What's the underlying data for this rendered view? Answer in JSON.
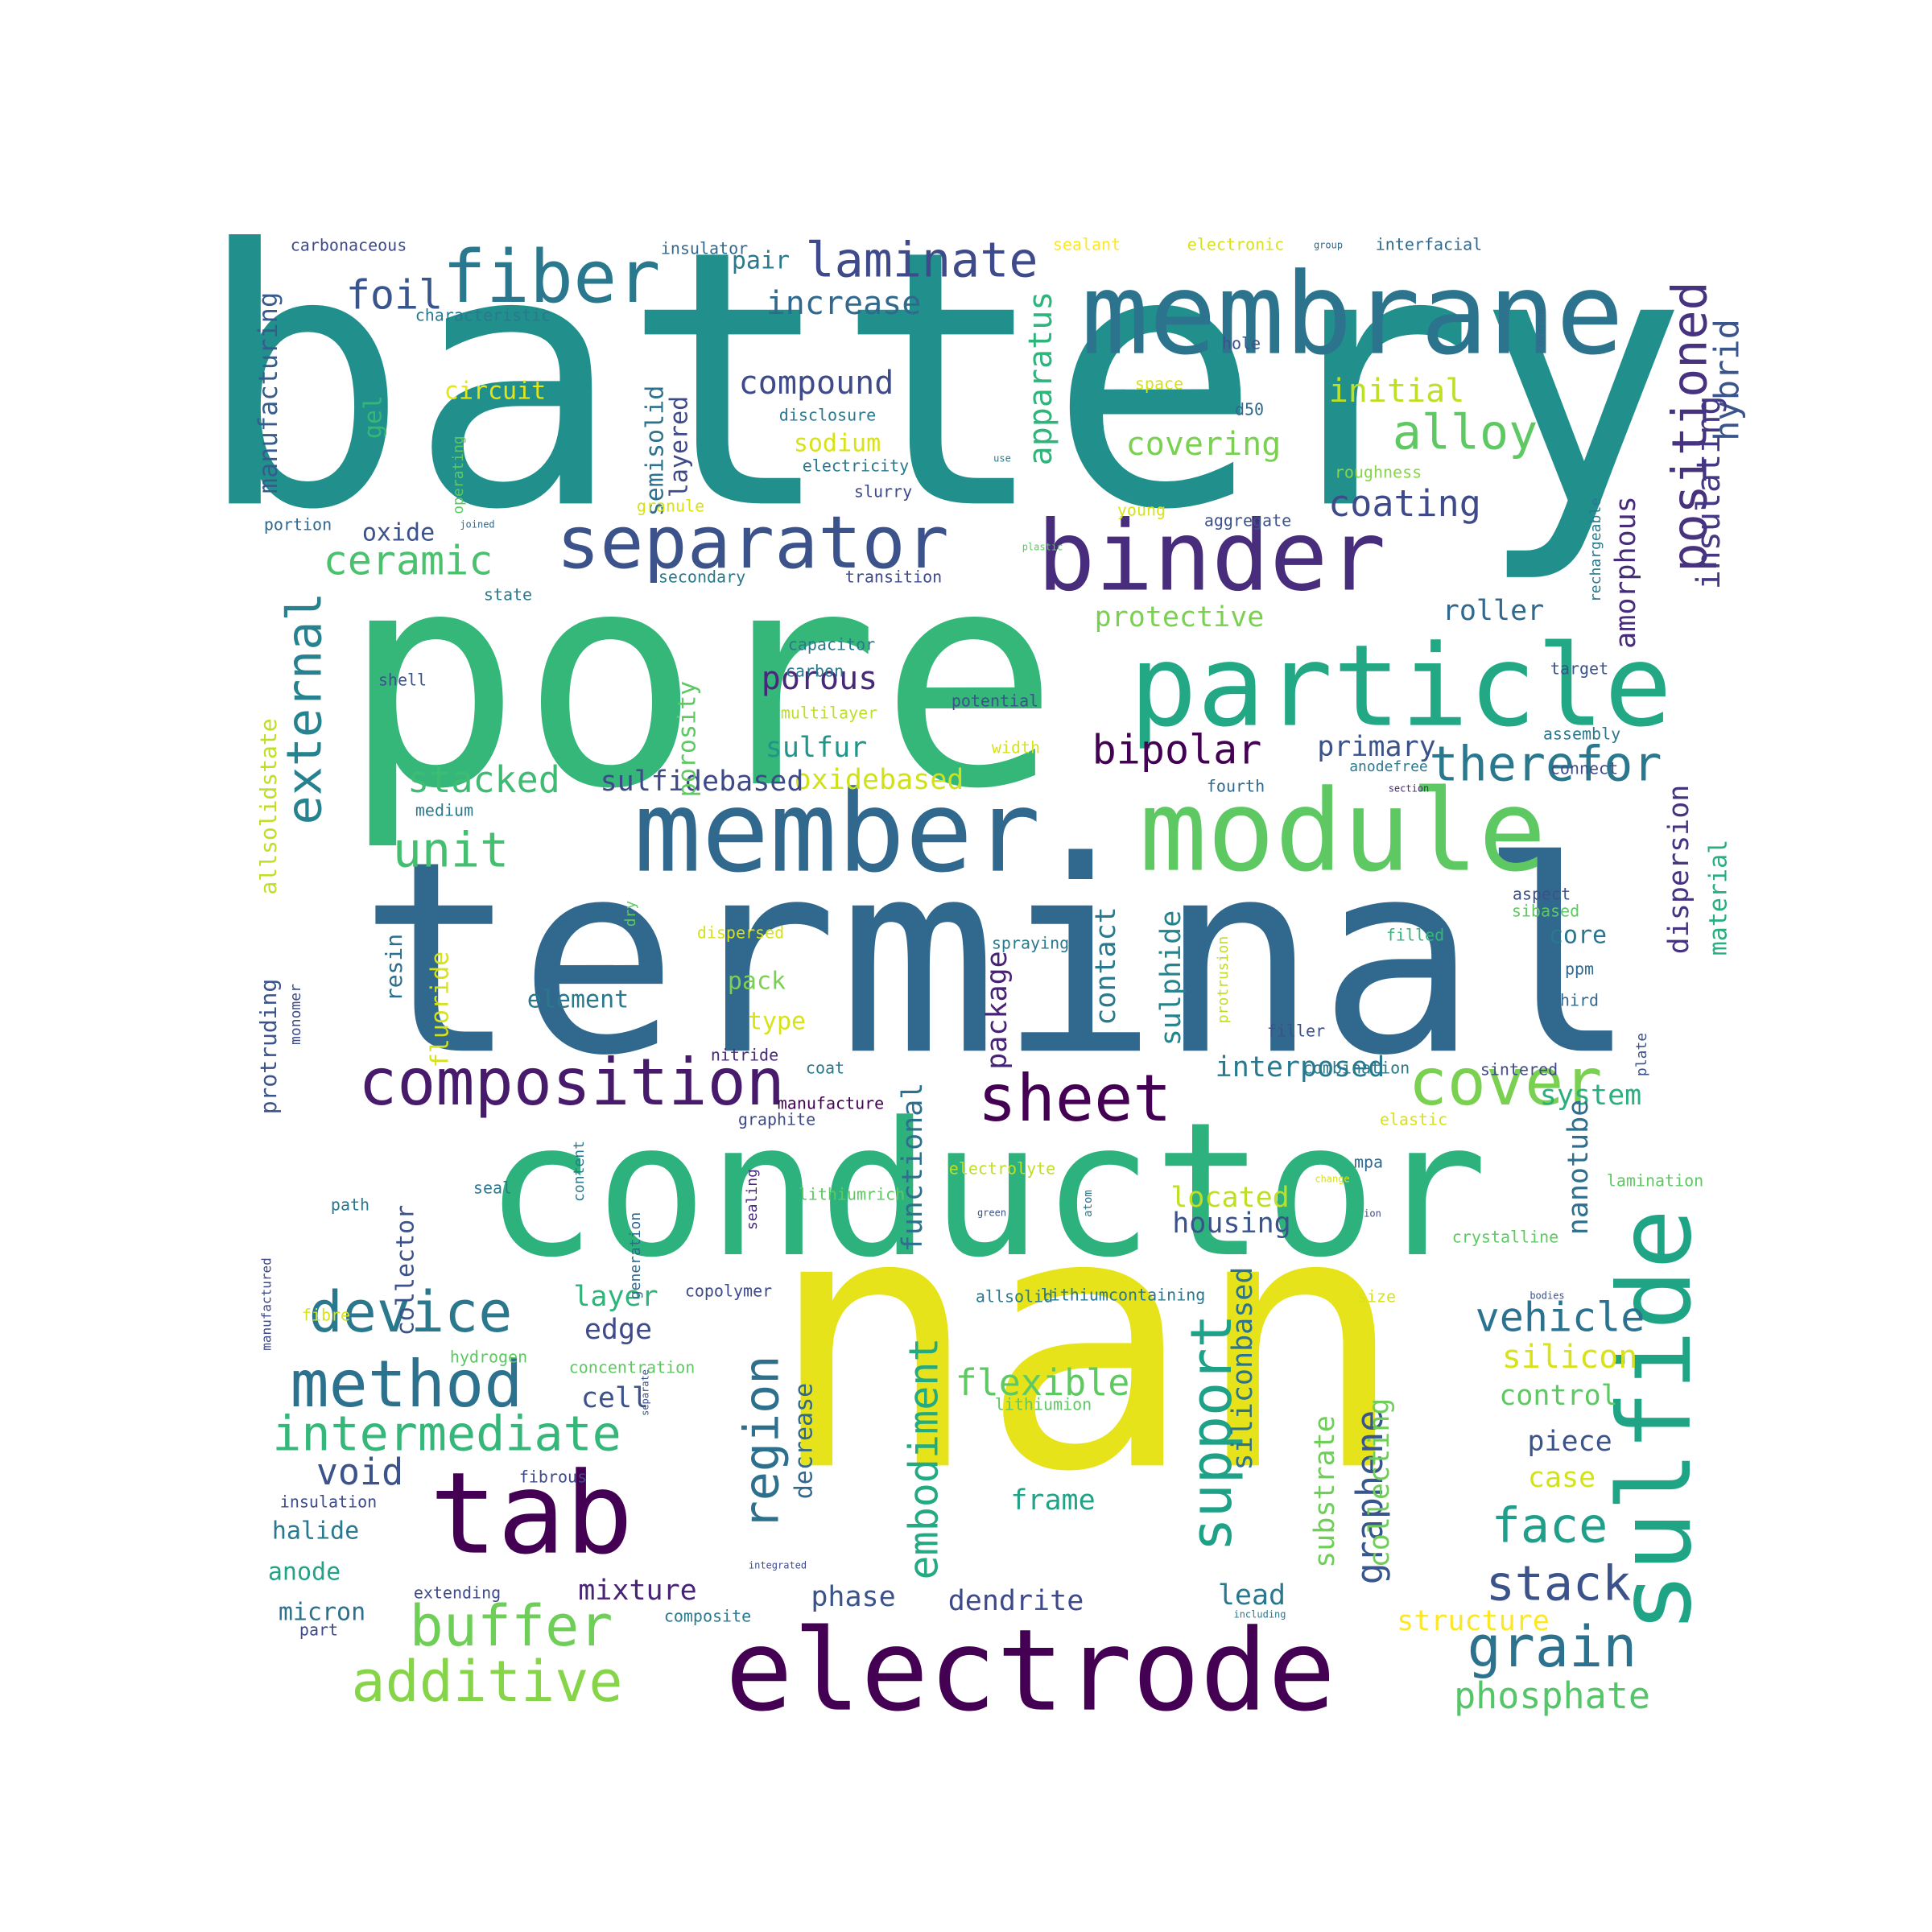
{
  "words": [
    {
      "text": "battery",
      "color": "#21908d"
    },
    {
      "text": "pore",
      "color": "#35b779"
    },
    {
      "text": "terminal",
      "color": "#31688e"
    },
    {
      "text": "nan",
      "color": "#e6e31a"
    },
    {
      "text": "conductor",
      "color": "#2db27d"
    },
    {
      "text": "electrode",
      "color": "#440154"
    },
    {
      "text": "membrane",
      "color": "#2c738e"
    },
    {
      "text": "particle",
      "color": "#22a884"
    },
    {
      "text": "member",
      "color": "#30688e"
    },
    {
      "text": "module",
      "color": "#5ec962"
    },
    {
      "text": "binder",
      "color": "#472d7b"
    },
    {
      "text": "tab",
      "color": "#440154"
    },
    {
      "text": "sulfide",
      "color": "#20a486"
    },
    {
      "text": "separator",
      "color": "#3b528b"
    },
    {
      "text": "fiber",
      "color": "#2a788e"
    },
    {
      "text": "composition",
      "color": "#481a6c"
    },
    {
      "text": "sheet",
      "color": "#440154"
    },
    {
      "text": "method",
      "color": "#2c728e"
    },
    {
      "text": "cover",
      "color": "#7ad151"
    },
    {
      "text": "additive",
      "color": "#86d549"
    },
    {
      "text": "buffer",
      "color": "#6ece58"
    },
    {
      "text": "device",
      "color": "#2a788e"
    },
    {
      "text": "intermediate",
      "color": "#35b779"
    },
    {
      "text": "grain",
      "color": "#2c728e"
    },
    {
      "text": "laminate",
      "color": "#3e4a89"
    },
    {
      "text": "positioned",
      "color": "#46327e"
    },
    {
      "text": "alloy",
      "color": "#5ec962"
    },
    {
      "text": "unit",
      "color": "#44bf70"
    },
    {
      "text": "support",
      "color": "#1fa188"
    },
    {
      "text": "region",
      "color": "#2d708e"
    },
    {
      "text": "embodiment",
      "color": "#24aa83"
    },
    {
      "text": "face",
      "color": "#1f9e89"
    },
    {
      "text": "stack",
      "color": "#3b528b"
    },
    {
      "text": "therefor",
      "color": "#2a788e"
    },
    {
      "text": "bipolar",
      "color": "#440154"
    },
    {
      "text": "external",
      "color": "#26828e"
    },
    {
      "text": "ceramic",
      "color": "#4ac16d"
    },
    {
      "text": "foil",
      "color": "#39568c"
    },
    {
      "text": "coating",
      "color": "#3e4a89"
    },
    {
      "text": "stacked",
      "color": "#3fbc73"
    },
    {
      "text": "vehicle",
      "color": "#2c718e"
    },
    {
      "text": "hybrid",
      "color": "#3a548c"
    },
    {
      "text": "void",
      "color": "#3b528b"
    },
    {
      "text": "phosphate",
      "color": "#54c568"
    },
    {
      "text": "flexible",
      "color": "#5ec962"
    },
    {
      "text": "silicon",
      "color": "#d8e219"
    },
    {
      "text": "graphene",
      "color": "#39568c"
    },
    {
      "text": "insulating",
      "color": "#453882"
    },
    {
      "text": "covering",
      "color": "#7ad151"
    },
    {
      "text": "compound",
      "color": "#3e4a89"
    },
    {
      "text": "initial",
      "color": "#bddf26"
    },
    {
      "text": "increase",
      "color": "#31688e"
    },
    {
      "text": "manufacturing",
      "color": "#365c8d"
    },
    {
      "text": "apparatus",
      "color": "#2fb47c"
    },
    {
      "text": "porous",
      "color": "#482878"
    },
    {
      "text": "sulfur",
      "color": "#1f958b"
    },
    {
      "text": "oxidebased",
      "color": "#d0e11c"
    },
    {
      "text": "sulfidebased",
      "color": "#3e4989"
    },
    {
      "text": "primary",
      "color": "#3b528b"
    },
    {
      "text": "protective",
      "color": "#7ad151"
    },
    {
      "text": "roller",
      "color": "#31688e"
    },
    {
      "text": "amorphous",
      "color": "#472c7a"
    },
    {
      "text": "dispersion",
      "color": "#46337f"
    },
    {
      "text": "material",
      "color": "#29af7f"
    },
    {
      "text": "interposed",
      "color": "#2a788e"
    },
    {
      "text": "system",
      "color": "#2ab07f"
    },
    {
      "text": "nanotube",
      "color": "#2e6e8e"
    },
    {
      "text": "functional",
      "color": "#2d708e"
    },
    {
      "text": "package",
      "color": "#482374"
    },
    {
      "text": "contact",
      "color": "#2a788e"
    },
    {
      "text": "sulphide",
      "color": "#25838e"
    },
    {
      "text": "located",
      "color": "#bddf26"
    },
    {
      "text": "housing",
      "color": "#3b528b"
    },
    {
      "text": "siliconbased",
      "color": "#2c738e"
    },
    {
      "text": "collecting",
      "color": "#6ece58"
    },
    {
      "text": "substrate",
      "color": "#6ece58"
    },
    {
      "text": "control",
      "color": "#5ec962"
    },
    {
      "text": "piece",
      "color": "#3b528b"
    },
    {
      "text": "case",
      "color": "#d2e21b"
    },
    {
      "text": "structure",
      "color": "#fde725"
    },
    {
      "text": "lead",
      "color": "#2a788e"
    },
    {
      "text": "dendrite",
      "color": "#3e4989"
    },
    {
      "text": "phase",
      "color": "#3b528b"
    },
    {
      "text": "mixture",
      "color": "#482475"
    },
    {
      "text": "frame",
      "color": "#20a386"
    },
    {
      "text": "decrease",
      "color": "#31688e"
    },
    {
      "text": "edge",
      "color": "#3e4a89"
    },
    {
      "text": "cell",
      "color": "#3b528b"
    },
    {
      "text": "layer",
      "color": "#2fb47c"
    },
    {
      "text": "element",
      "color": "#2a788e"
    },
    {
      "text": "type",
      "color": "#d8e219"
    },
    {
      "text": "pack",
      "color": "#7ad151"
    },
    {
      "text": "core",
      "color": "#2a788e"
    },
    {
      "text": "resin",
      "color": "#2e6e8e"
    },
    {
      "text": "fluoride",
      "color": "#d5e21a"
    },
    {
      "text": "protruding",
      "color": "#3b528b"
    },
    {
      "text": "allsolidstate",
      "color": "#bddf26"
    },
    {
      "text": "porosity",
      "color": "#5ec962"
    },
    {
      "text": "layered",
      "color": "#3e4a89"
    },
    {
      "text": "semisolid",
      "color": "#2c728e"
    },
    {
      "text": "sodium",
      "color": "#d8e219"
    },
    {
      "text": "circuit",
      "color": "#e5e419"
    },
    {
      "text": "gel",
      "color": "#35b779"
    },
    {
      "text": "oxide",
      "color": "#3b528b"
    },
    {
      "text": "pair",
      "color": "#2a788e"
    },
    {
      "text": "halide",
      "color": "#2a788e"
    },
    {
      "text": "anode",
      "color": "#20a386"
    },
    {
      "text": "micron",
      "color": "#2c728e"
    },
    {
      "text": "collector",
      "color": "#3b528b"
    },
    {
      "text": "carbonaceous",
      "color": "#3e4a89"
    },
    {
      "text": "insulator",
      "color": "#31688e"
    },
    {
      "text": "characteristic",
      "color": "#2a788e"
    },
    {
      "text": "sealant",
      "color": "#fde725"
    },
    {
      "text": "electronic",
      "color": "#d8e219"
    },
    {
      "text": "group",
      "color": "#31688e"
    },
    {
      "text": "interfacial",
      "color": "#31688e"
    },
    {
      "text": "hole",
      "color": "#3b528b"
    },
    {
      "text": "overlap",
      "color": "#31688e"
    },
    {
      "text": "space",
      "color": "#d8e219"
    },
    {
      "text": "d50",
      "color": "#31688e"
    },
    {
      "text": "disclosure",
      "color": "#2a788e"
    },
    {
      "text": "electricity",
      "color": "#2a788e"
    },
    {
      "text": "slurry",
      "color": "#3e4a89"
    },
    {
      "text": "granule",
      "color": "#d8e219"
    },
    {
      "text": "young",
      "color": "#d8e219"
    },
    {
      "text": "aggregate",
      "color": "#3b528b"
    },
    {
      "text": "roughness",
      "color": "#86d549"
    },
    {
      "text": "operating",
      "color": "#5ec962"
    },
    {
      "text": "use",
      "color": "#2a788e"
    },
    {
      "text": "joined",
      "color": "#31688e"
    },
    {
      "text": "plastic",
      "color": "#5ec962"
    },
    {
      "text": "rechargeable",
      "color": "#2a788e"
    },
    {
      "text": "portion",
      "color": "#31688e"
    },
    {
      "text": "secondary",
      "color": "#2a788e"
    },
    {
      "text": "transition",
      "color": "#3e4a89"
    },
    {
      "text": "state",
      "color": "#2a788e"
    },
    {
      "text": "capacitor",
      "color": "#2a788e"
    },
    {
      "text": "shell",
      "color": "#3b528b"
    },
    {
      "text": "carbon",
      "color": "#2a788e"
    },
    {
      "text": "target",
      "color": "#3b528b"
    },
    {
      "text": "multilayer",
      "color": "#bddf26"
    },
    {
      "text": "potential",
      "color": "#3b528b"
    },
    {
      "text": "assembly",
      "color": "#2a788e"
    },
    {
      "text": "width",
      "color": "#d8e219"
    },
    {
      "text": "connect",
      "color": "#3e4a89"
    },
    {
      "text": "anodefree",
      "color": "#2a788e"
    },
    {
      "text": "section",
      "color": "#482878"
    },
    {
      "text": "fourth",
      "color": "#31688e"
    },
    {
      "text": "medium",
      "color": "#2a788e"
    },
    {
      "text": "aspect",
      "color": "#3b528b"
    },
    {
      "text": "sibased",
      "color": "#5ec962"
    },
    {
      "text": "dry",
      "color": "#5ec962"
    },
    {
      "text": "dispersed",
      "color": "#d8e219"
    },
    {
      "text": "spraying",
      "color": "#2a788e"
    },
    {
      "text": "filled",
      "color": "#35b779"
    },
    {
      "text": "ppm",
      "color": "#31688e"
    },
    {
      "text": "third",
      "color": "#31688e"
    },
    {
      "text": "protrusion",
      "color": "#bddf26"
    },
    {
      "text": "filler",
      "color": "#3b528b"
    },
    {
      "text": "monomer",
      "color": "#3e4a89"
    },
    {
      "text": "nitride",
      "color": "#482878"
    },
    {
      "text": "coat",
      "color": "#2a788e"
    },
    {
      "text": "sintered",
      "color": "#3e4a89"
    },
    {
      "text": "plate",
      "color": "#3b528b"
    },
    {
      "text": "combination",
      "color": "#2a788e"
    },
    {
      "text": "manufacture",
      "color": "#440154"
    },
    {
      "text": "graphite",
      "color": "#3e4a89"
    },
    {
      "text": "elastic",
      "color": "#d8e219"
    },
    {
      "text": "content",
      "color": "#2a788e"
    },
    {
      "text": "sealing",
      "color": "#482878"
    },
    {
      "text": "mpa",
      "color": "#31688e"
    },
    {
      "text": "lamination",
      "color": "#5ec962"
    },
    {
      "text": "electrolyte",
      "color": "#bddf26"
    },
    {
      "text": "atom",
      "color": "#2a788e"
    },
    {
      "text": "change",
      "color": "#d8e219"
    },
    {
      "text": "seal",
      "color": "#2a788e"
    },
    {
      "text": "path",
      "color": "#2a788e"
    },
    {
      "text": "lithiumrich",
      "color": "#5ec962"
    },
    {
      "text": "green",
      "color": "#3b528b"
    },
    {
      "text": "ion",
      "color": "#3e4a89"
    },
    {
      "text": "generation",
      "color": "#31688e"
    },
    {
      "text": "crystalline",
      "color": "#5ec962"
    },
    {
      "text": "manufactured",
      "color": "#3e4a89"
    },
    {
      "text": "copolymer",
      "color": "#3e4a89"
    },
    {
      "text": "allsolid",
      "color": "#2a788e"
    },
    {
      "text": "lithiumcontaining",
      "color": "#2a788e"
    },
    {
      "text": "size",
      "color": "#d8e219"
    },
    {
      "text": "bodies",
      "color": "#3b528b"
    },
    {
      "text": "fibre",
      "color": "#d8e219"
    },
    {
      "text": "hydrogen",
      "color": "#5ec962"
    },
    {
      "text": "concentration",
      "color": "#5ec962"
    },
    {
      "text": "separate",
      "color": "#3b528b"
    },
    {
      "text": "lithiumion",
      "color": "#5ec962"
    },
    {
      "text": "fibrous",
      "color": "#3e4a89"
    },
    {
      "text": "insulation",
      "color": "#3e4a89"
    },
    {
      "text": "extending",
      "color": "#3e4a89"
    },
    {
      "text": "integrated",
      "color": "#3e4a89"
    },
    {
      "text": "composite",
      "color": "#2a788e"
    },
    {
      "text": "including",
      "color": "#2a788e"
    },
    {
      "text": "part",
      "color": "#3e4a89"
    }
  ]
}
